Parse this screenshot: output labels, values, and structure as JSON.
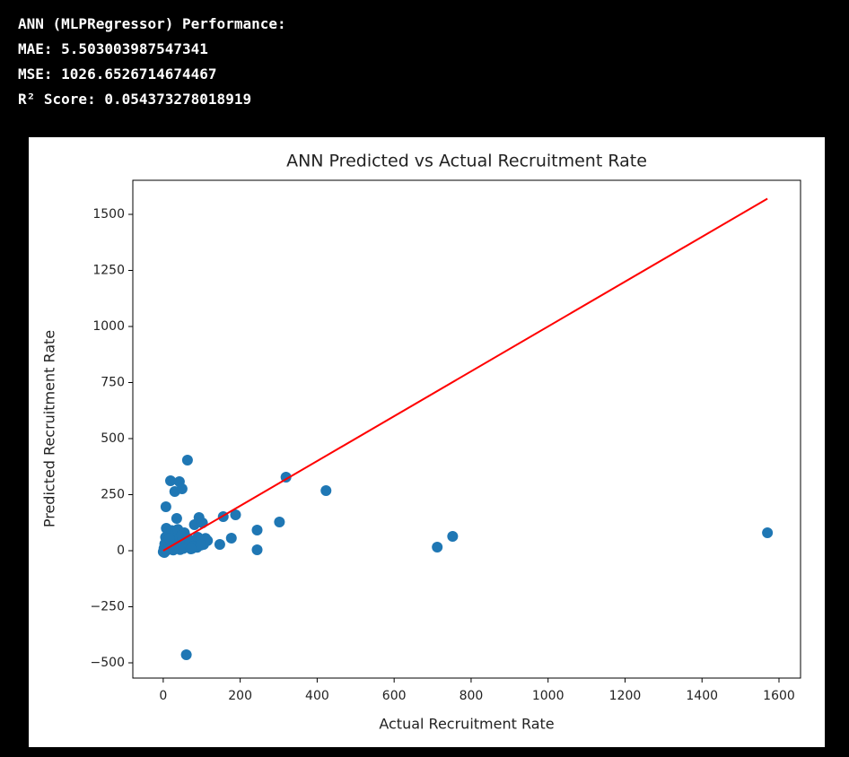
{
  "output": [
    "ANN (MLPRegressor) Performance:",
    "MAE: 5.503003987547341",
    "MSE: 1026.6526714674467",
    "R² Score: 0.054373278018919"
  ],
  "chart_data": {
    "type": "scatter",
    "title": "ANN Predicted vs Actual Recruitment Rate",
    "x_label": "Actual Recruitment Rate",
    "y_label": "Predicted Recruitment Rate",
    "xlim": [
      -79,
      1656
    ],
    "ylim": [
      -568,
      1652
    ],
    "xticks": [
      0,
      200,
      400,
      600,
      800,
      1000,
      1200,
      1400,
      1600
    ],
    "yticks": [
      {
        "value": -500,
        "label": "−500"
      },
      {
        "value": -250,
        "label": "−250"
      },
      0,
      250,
      500,
      750,
      1000,
      1250,
      1500
    ],
    "series": [
      {
        "type": "scatter",
        "color": "#1f77b4",
        "x": [
          1570,
          712,
          752,
          423,
          319,
          302,
          244,
          244,
          188,
          177,
          156,
          147,
          63,
          60,
          19,
          42,
          30,
          49,
          7,
          35,
          93,
          81,
          102,
          0,
          2,
          4,
          6,
          8,
          10,
          12,
          15,
          18,
          20,
          24,
          28,
          32,
          36,
          40,
          45,
          50,
          55,
          60,
          65,
          70,
          75,
          80,
          85,
          90,
          95,
          100,
          105,
          110,
          115,
          5,
          14,
          22,
          30,
          38,
          48,
          58,
          68,
          78,
          88,
          98,
          3,
          9,
          16,
          26,
          44,
          52,
          72
        ],
        "values": [
          80,
          16,
          64,
          268,
          328,
          128,
          92,
          4,
          160,
          56,
          152,
          28,
          404,
          -464,
          312,
          308,
          264,
          276,
          196,
          144,
          148,
          116,
          124,
          -5,
          10,
          30,
          60,
          100,
          5,
          40,
          20,
          70,
          15,
          50,
          8,
          35,
          65,
          25,
          12,
          45,
          80,
          18,
          55,
          30,
          10,
          40,
          22,
          60,
          35,
          50,
          28,
          55,
          45,
          0,
          85,
          90,
          75,
          95,
          70,
          40,
          30,
          20,
          15,
          25,
          -8,
          2,
          55,
          3,
          5,
          10,
          8
        ]
      },
      {
        "type": "line",
        "color": "#ff0000",
        "x": [
          0,
          1570
        ],
        "values": [
          0,
          1570
        ]
      }
    ]
  }
}
